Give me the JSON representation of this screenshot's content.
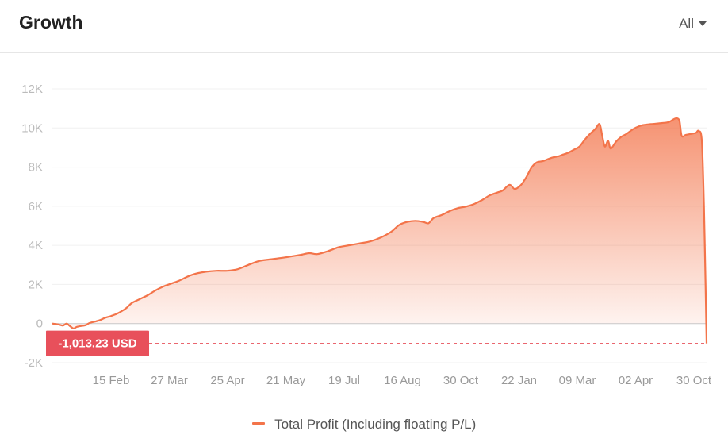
{
  "header": {
    "title": "Growth",
    "range": "All"
  },
  "colors": {
    "line": "#f3744a",
    "marker": "#e8505b",
    "grid": "#f0f0f0",
    "zero": "#c8c8c8"
  },
  "chart_data": {
    "type": "area",
    "title": "Growth",
    "xlabel": "",
    "ylabel": "",
    "ylim": [
      -2000,
      12000
    ],
    "yticks": [
      -2000,
      0,
      2000,
      4000,
      6000,
      8000,
      10000,
      12000
    ],
    "ytick_labels": [
      "-2K",
      "0",
      "2K",
      "4K",
      "6K",
      "8K",
      "10K",
      "12K"
    ],
    "xtick_labels": [
      "15 Feb",
      "27 Mar",
      "25 Apr",
      "21 May",
      "19 Jul",
      "16 Aug",
      "30 Oct",
      "22 Jan",
      "09 Mar",
      "02 Apr",
      "30 Oct"
    ],
    "grid": true,
    "series": [
      {
        "name": "Total Profit (Including floating P/L)",
        "points": [
          [
            0,
            0
          ],
          [
            1.2,
            -50
          ],
          [
            2,
            -100
          ],
          [
            2.7,
            0
          ],
          [
            3.3,
            -120
          ],
          [
            4,
            -250
          ],
          [
            4.6,
            -170
          ],
          [
            5.5,
            -120
          ],
          [
            6.3,
            -80
          ],
          [
            7,
            30
          ],
          [
            8,
            100
          ],
          [
            9,
            180
          ],
          [
            10,
            300
          ],
          [
            11,
            380
          ],
          [
            12,
            480
          ],
          [
            13,
            620
          ],
          [
            14,
            800
          ],
          [
            15,
            1050
          ],
          [
            16.5,
            1250
          ],
          [
            18,
            1450
          ],
          [
            19.5,
            1700
          ],
          [
            21,
            1900
          ],
          [
            22.5,
            2050
          ],
          [
            24,
            2200
          ],
          [
            25.5,
            2400
          ],
          [
            27,
            2550
          ],
          [
            29,
            2650
          ],
          [
            31,
            2700
          ],
          [
            33,
            2700
          ],
          [
            35,
            2780
          ],
          [
            37,
            3000
          ],
          [
            39,
            3200
          ],
          [
            41,
            3280
          ],
          [
            43,
            3350
          ],
          [
            45,
            3430
          ],
          [
            47,
            3520
          ],
          [
            48.5,
            3600
          ],
          [
            50,
            3550
          ],
          [
            52,
            3700
          ],
          [
            54,
            3900
          ],
          [
            56,
            4000
          ],
          [
            58,
            4100
          ],
          [
            60,
            4200
          ],
          [
            62,
            4400
          ],
          [
            64,
            4700
          ],
          [
            65.5,
            5050
          ],
          [
            67,
            5200
          ],
          [
            68.5,
            5250
          ],
          [
            70,
            5200
          ],
          [
            71,
            5130
          ],
          [
            72,
            5400
          ],
          [
            73.5,
            5550
          ],
          [
            75,
            5750
          ],
          [
            76.5,
            5900
          ],
          [
            78,
            5980
          ],
          [
            79.5,
            6100
          ],
          [
            81,
            6300
          ],
          [
            82.5,
            6550
          ],
          [
            84,
            6700
          ],
          [
            85,
            6800
          ],
          [
            86.3,
            7100
          ],
          [
            87.3,
            6880
          ],
          [
            88.5,
            7100
          ],
          [
            89.5,
            7500
          ],
          [
            90.5,
            8000
          ],
          [
            91.5,
            8250
          ],
          [
            92.5,
            8300
          ],
          [
            93.5,
            8400
          ],
          [
            94.5,
            8500
          ],
          [
            95.5,
            8550
          ],
          [
            96.5,
            8650
          ],
          [
            97.5,
            8750
          ],
          [
            98.5,
            8900
          ],
          [
            99.5,
            9050
          ],
          [
            100.5,
            9400
          ],
          [
            101.5,
            9700
          ],
          [
            102.5,
            9950
          ],
          [
            103.3,
            10200
          ],
          [
            103.8,
            9600
          ],
          [
            104.3,
            9050
          ],
          [
            104.9,
            9350
          ],
          [
            105.4,
            8950
          ],
          [
            106.4,
            9300
          ],
          [
            107.4,
            9550
          ],
          [
            108.4,
            9700
          ],
          [
            109.4,
            9900
          ],
          [
            110.4,
            10050
          ],
          [
            111.5,
            10150
          ],
          [
            113,
            10200
          ],
          [
            115,
            10250
          ],
          [
            116.3,
            10300
          ],
          [
            117.3,
            10450
          ],
          [
            117.9,
            10500
          ],
          [
            118.4,
            10350
          ],
          [
            118.8,
            9600
          ],
          [
            119.6,
            9650
          ],
          [
            120.6,
            9700
          ],
          [
            121.5,
            9750
          ],
          [
            122,
            9850
          ],
          [
            122.6,
            9350
          ],
          [
            123,
            6000
          ],
          [
            123.3,
            2000
          ],
          [
            123.5,
            -1013.23
          ]
        ],
        "last_value": -1013.23
      }
    ],
    "last_value_label": "-1,013.23 USD",
    "legend": {
      "position": "bottom-center"
    }
  }
}
